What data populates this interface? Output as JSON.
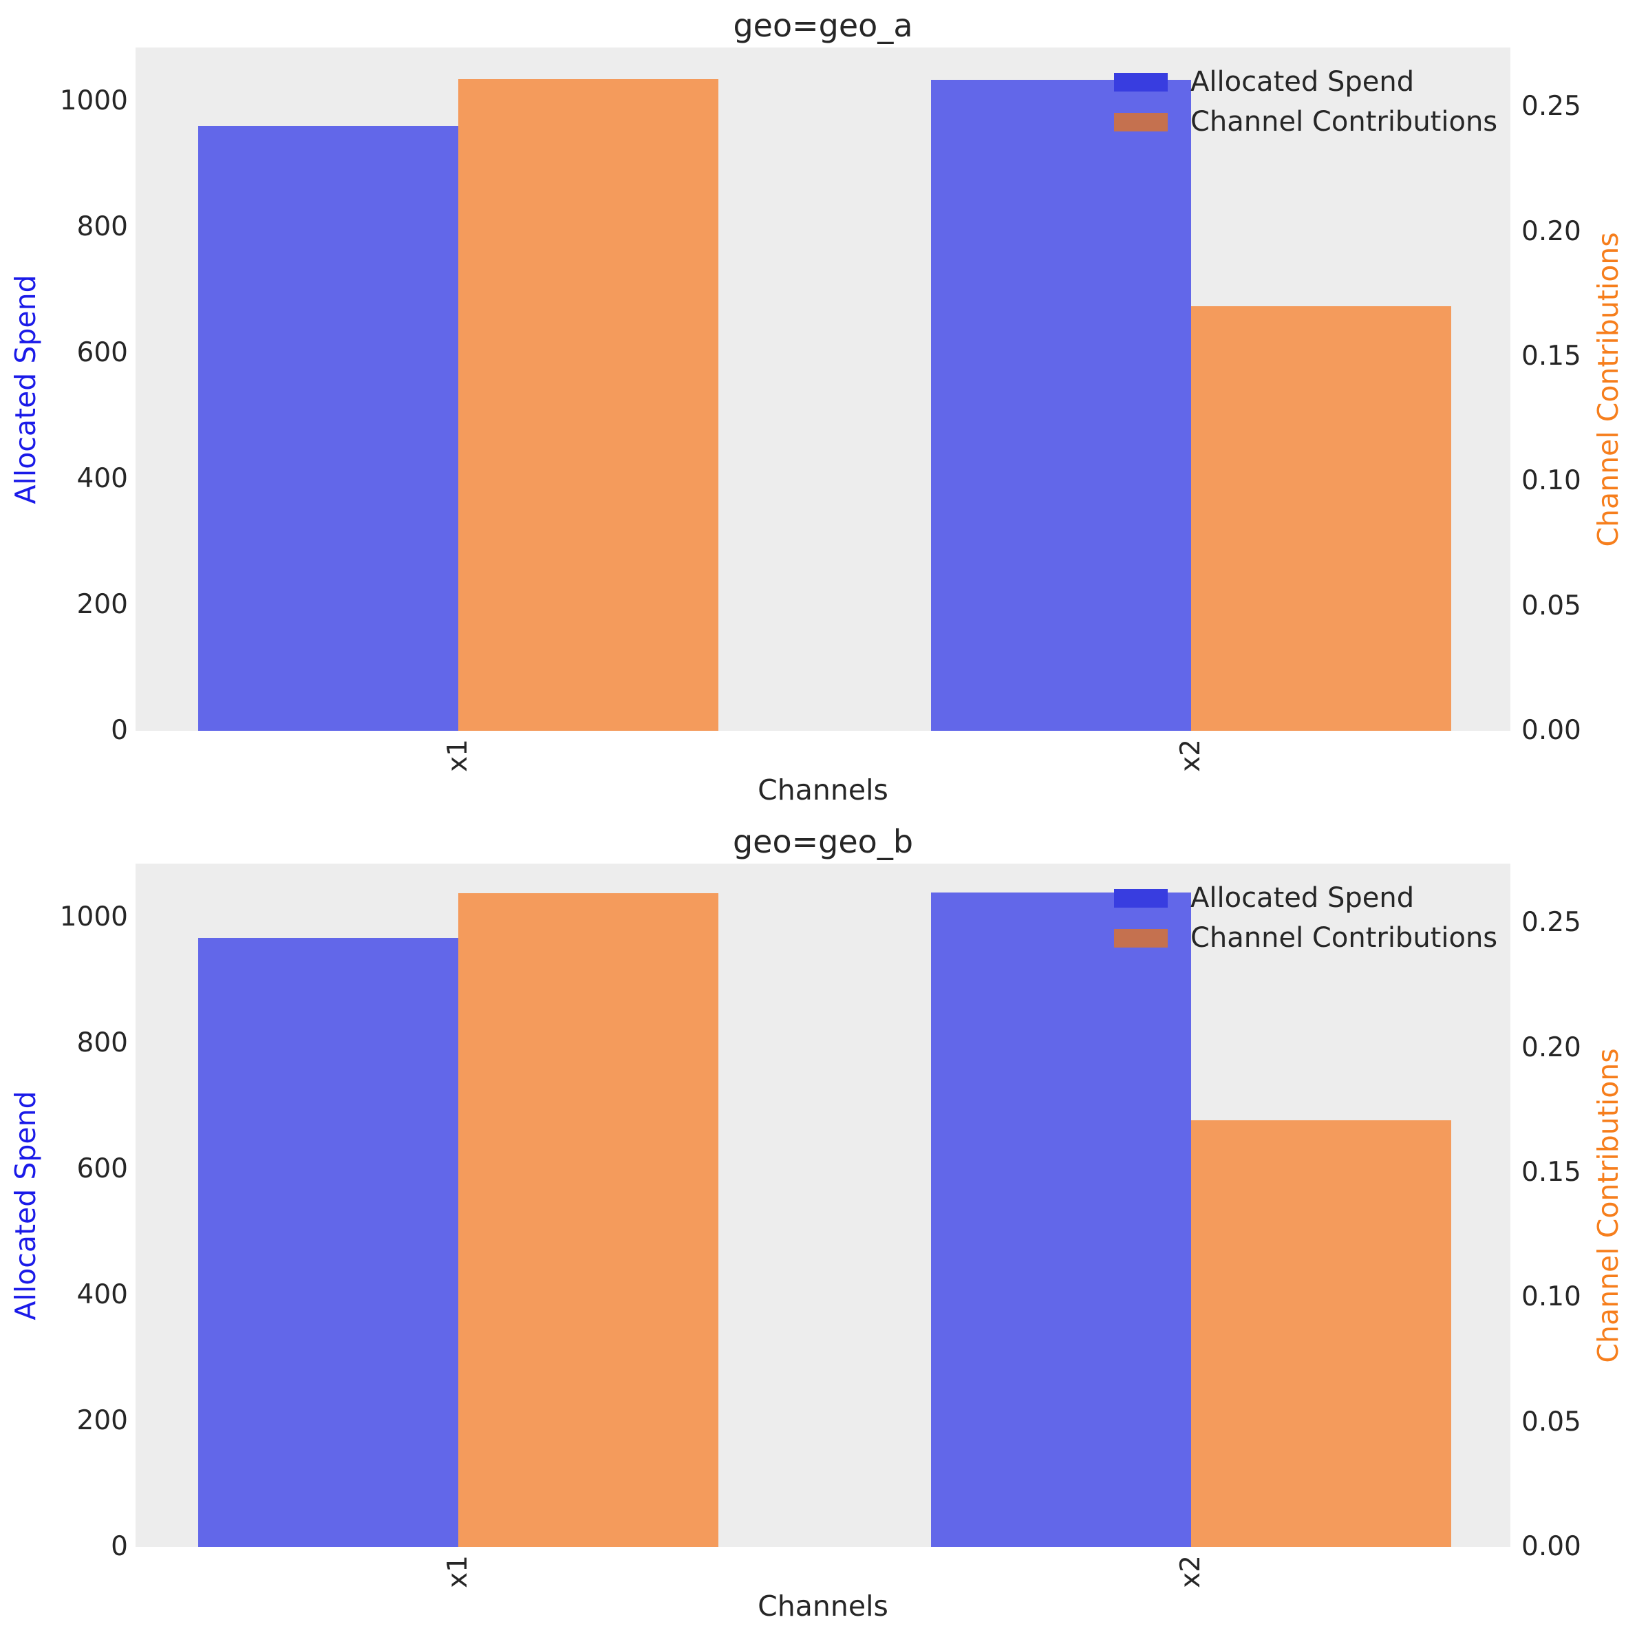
{
  "figure": {
    "background": "#ffffff"
  },
  "colors": {
    "spend_bar": "#6267e9",
    "contribution_bar": "#f49b5c",
    "legend_spend_swatch": "#383de0",
    "legend_contribution_swatch": "#c5714f",
    "plot_background": "#ededed",
    "text": "#262626",
    "left_axis_label": "#1a1ae8",
    "right_axis_label": "#f67e1c"
  },
  "chart_data": [
    {
      "type": "bar",
      "title": "geo=geo_a",
      "xlabel": "Channels",
      "categories": [
        "x1",
        "x2"
      ],
      "series": [
        {
          "name": "Allocated Spend",
          "axis": "left",
          "values": [
            960,
            1034
          ]
        },
        {
          "name": "Channel Contributions",
          "axis": "right",
          "values": [
            0.261,
            0.17
          ]
        }
      ],
      "left_axis": {
        "label": "Allocated Spend",
        "tick_values": [
          0,
          200,
          400,
          600,
          800,
          1000
        ],
        "tick_labels": [
          "0",
          "200",
          "400",
          "600",
          "800",
          "1000"
        ],
        "max": 1085
      },
      "right_axis": {
        "label": "Channel Contributions",
        "tick_values": [
          0.0,
          0.05,
          0.1,
          0.15,
          0.2,
          0.25
        ],
        "tick_labels": [
          "0.00",
          "0.05",
          "0.10",
          "0.15",
          "0.20",
          "0.25"
        ],
        "max": 0.27375
      },
      "legend": {
        "position": "upper right",
        "entries": [
          "Allocated Spend",
          "Channel Contributions"
        ]
      },
      "grid": false
    },
    {
      "type": "bar",
      "title": "geo=geo_b",
      "xlabel": "Channels",
      "categories": [
        "x1",
        "x2"
      ],
      "series": [
        {
          "name": "Allocated Spend",
          "axis": "left",
          "values": [
            967,
            1039
          ]
        },
        {
          "name": "Channel Contributions",
          "axis": "right",
          "values": [
            0.262,
            0.171
          ]
        }
      ],
      "left_axis": {
        "label": "Allocated Spend",
        "tick_values": [
          0,
          200,
          400,
          600,
          800,
          1000
        ],
        "tick_labels": [
          "0",
          "200",
          "400",
          "600",
          "800",
          "1000"
        ],
        "max": 1085
      },
      "right_axis": {
        "label": "Channel Contributions",
        "tick_values": [
          0.0,
          0.05,
          0.1,
          0.15,
          0.2,
          0.25
        ],
        "tick_labels": [
          "0.00",
          "0.05",
          "0.10",
          "0.15",
          "0.20",
          "0.25"
        ],
        "max": 0.27375
      },
      "legend": {
        "position": "upper right",
        "entries": [
          "Allocated Spend",
          "Channel Contributions"
        ]
      },
      "grid": false
    }
  ]
}
